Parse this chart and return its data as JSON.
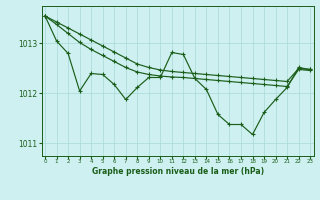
{
  "title": "Graphe pression niveau de la mer (hPa)",
  "hours": [
    0,
    1,
    2,
    3,
    4,
    5,
    6,
    7,
    8,
    9,
    10,
    11,
    12,
    13,
    14,
    15,
    16,
    17,
    18,
    19,
    20,
    21,
    22,
    23
  ],
  "line_straight1": [
    1013.55,
    1013.43,
    1013.31,
    1013.19,
    1013.07,
    1012.95,
    1012.83,
    1012.71,
    1012.59,
    1012.52,
    1012.47,
    1012.44,
    1012.42,
    1012.4,
    1012.38,
    1012.36,
    1012.34,
    1012.32,
    1012.3,
    1012.28,
    1012.26,
    1012.24,
    1012.5,
    1012.48
  ],
  "line_straight2": [
    1013.55,
    1013.38,
    1013.2,
    1013.02,
    1012.88,
    1012.76,
    1012.64,
    1012.52,
    1012.43,
    1012.38,
    1012.35,
    1012.33,
    1012.32,
    1012.3,
    1012.28,
    1012.26,
    1012.24,
    1012.22,
    1012.2,
    1012.18,
    1012.16,
    1012.14,
    1012.48,
    1012.46
  ],
  "line_jagged": [
    1013.55,
    1013.05,
    1012.8,
    1012.05,
    1012.4,
    1012.38,
    1012.18,
    1011.88,
    1012.12,
    1012.32,
    1012.32,
    1012.82,
    1012.78,
    1012.3,
    1012.08,
    1011.58,
    1011.38,
    1011.38,
    1011.18,
    1011.62,
    1011.88,
    1012.12,
    1012.52,
    1012.48
  ],
  "bg_color": "#cef0f0",
  "grid_color": "#a8d8d8",
  "line_color": "#1a5e1a",
  "yticks": [
    1011,
    1012,
    1013
  ],
  "ylim": [
    1010.75,
    1013.75
  ],
  "xlim": [
    -0.3,
    23.3
  ]
}
